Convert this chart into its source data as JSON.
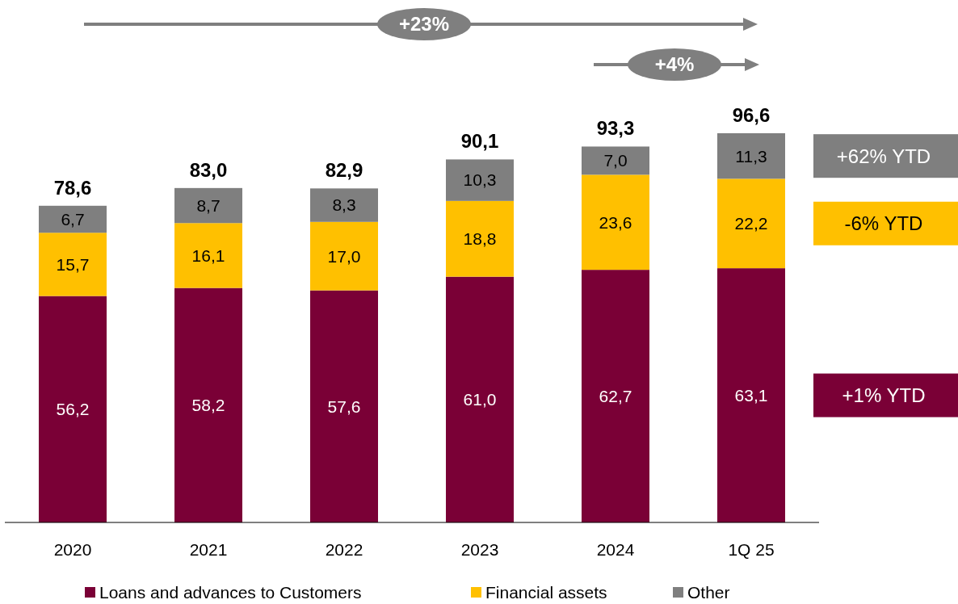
{
  "chart_data": {
    "type": "bar",
    "stacked": true,
    "categories": [
      "2020",
      "2021",
      "2022",
      "2023",
      "2024",
      "1Q 25"
    ],
    "series": [
      {
        "name": "Loans and advances to Customers",
        "color": "#7a0036",
        "values": [
          56.2,
          58.2,
          57.6,
          61.0,
          62.7,
          63.1
        ],
        "value_labels": [
          "56,2",
          "58,2",
          "57,6",
          "61,0",
          "62,7",
          "63,1"
        ]
      },
      {
        "name": "Financial assets",
        "color": "#ffc000",
        "values": [
          15.7,
          16.1,
          17.0,
          18.8,
          23.6,
          22.2
        ],
        "value_labels": [
          "15,7",
          "16,1",
          "17,0",
          "18,8",
          "23,6",
          "22,2"
        ]
      },
      {
        "name": "Other",
        "color": "#7f7f7f",
        "values": [
          6.7,
          8.7,
          8.3,
          10.3,
          7.0,
          11.3
        ],
        "value_labels": [
          "6,7",
          "8,7",
          "8,3",
          "10,3",
          "7,0",
          "11,3"
        ]
      }
    ],
    "totals": [
      "78,6",
      "83,0",
      "82,9",
      "90,1",
      "93,3",
      "96,6"
    ],
    "legend": "bottom",
    "annotations": [
      "+23%",
      "+4%",
      "+1% YTD",
      "-6% YTD",
      "+62% YTD"
    ]
  }
}
